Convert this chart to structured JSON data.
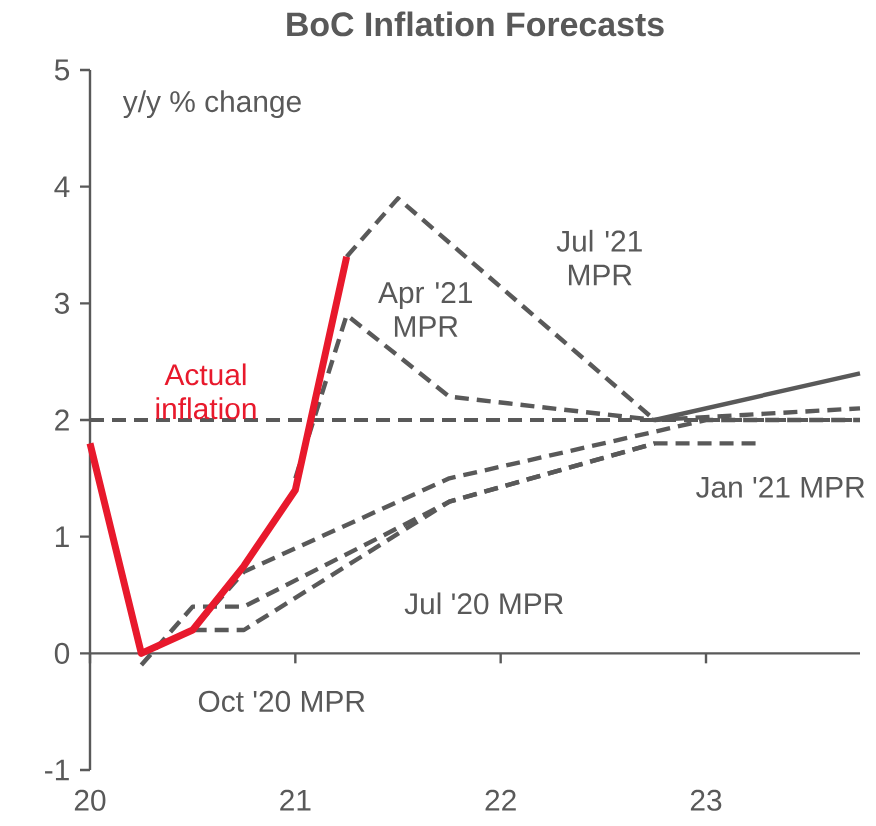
{
  "chart_data": {
    "type": "line",
    "title": "BoC Inflation Forecasts",
    "ylabel": "y/y % change",
    "xlim": [
      2020,
      2023.75
    ],
    "xticks": [
      {
        "value": 2020,
        "label": "20"
      },
      {
        "value": 2021,
        "label": "21"
      },
      {
        "value": 2022,
        "label": "22"
      },
      {
        "value": 2023,
        "label": "23"
      }
    ],
    "ylim": [
      -1,
      5
    ],
    "yticks": [
      -1,
      0,
      1,
      2,
      3,
      4,
      5
    ],
    "ref_lines": [
      {
        "axis": "y",
        "value": 2,
        "color": "#595959",
        "line_style": "dashed"
      }
    ],
    "series": [
      {
        "color": "#595959",
        "line_style": "dashed",
        "x": [
          2021.25,
          2021.5,
          2022.75
        ],
        "values": [
          3.4,
          3.9,
          2.0
        ]
      },
      {
        "color": "#595959",
        "line_style": "solid",
        "x": [
          2022.75,
          2023.75
        ],
        "values": [
          2.0,
          2.4
        ]
      },
      {
        "color": "#595959",
        "line_style": "dashed",
        "x": [
          2021.0,
          2021.25,
          2021.75,
          2022.75,
          2023.75
        ],
        "values": [
          1.5,
          2.9,
          2.2,
          2.0,
          2.1
        ]
      },
      {
        "color": "#595959",
        "line_style": "dashed",
        "x": [
          2020.25,
          2020.5,
          2020.75,
          2021.75,
          2022.75,
          2023.0,
          2023.75
        ],
        "values": [
          0.0,
          0.2,
          0.7,
          1.5,
          1.9,
          2.0,
          2.0
        ]
      },
      {
        "color": "#595959",
        "line_style": "dashed",
        "x": [
          2020.25,
          2020.5,
          2020.75,
          2021.75,
          2022.75,
          2023.25
        ],
        "values": [
          -0.1,
          0.4,
          0.4,
          1.3,
          1.8,
          1.8
        ]
      },
      {
        "color": "#595959",
        "line_style": "dashed",
        "x": [
          2020.5,
          2020.75,
          2021.75,
          2022.75
        ],
        "values": [
          0.2,
          0.2,
          1.3,
          1.8
        ]
      },
      {
        "name": "Actual inflation",
        "color": "#e8192c",
        "line_style": "solid",
        "x": [
          2020,
          2020.25,
          2020.5,
          2020.75,
          2021,
          2021.25
        ],
        "values": [
          1.8,
          0.0,
          0.2,
          0.75,
          1.4,
          3.4
        ]
      }
    ],
    "annotations": [
      "Jul '21 MPR",
      "Apr '21 MPR",
      "Jan '21 MPR",
      "Jul '20 MPR",
      "Oct '20 MPR"
    ]
  }
}
